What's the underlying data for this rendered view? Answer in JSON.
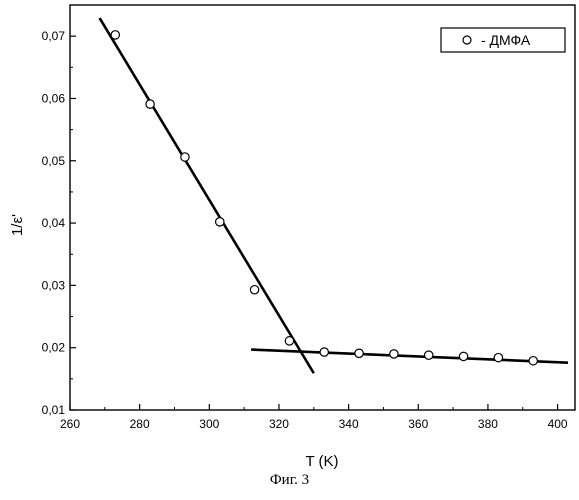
{
  "chart_data": {
    "type": "scatter",
    "xlabel": "T (K)",
    "ylabel": "1/ε'",
    "xlim": [
      260,
      405
    ],
    "ylim": [
      0.01,
      0.075
    ],
    "x_ticks": [
      260,
      280,
      300,
      320,
      340,
      360,
      380,
      400
    ],
    "x_tick_labels": [
      "260",
      "280",
      "300",
      "320",
      "340",
      "360",
      "380",
      "400"
    ],
    "y_ticks": [
      0.01,
      0.02,
      0.03,
      0.04,
      0.05,
      0.06,
      0.07
    ],
    "y_tick_labels": [
      "0,01",
      "0,02",
      "0,03",
      "0,04",
      "0,05",
      "0,06",
      "0,07"
    ],
    "grid": false,
    "legend_position": "top-right",
    "series": [
      {
        "name": "- ДМФА",
        "marker": "open-circle",
        "x": [
          273,
          283,
          293,
          303,
          313,
          323,
          333,
          343,
          353,
          363,
          373,
          383,
          393
        ],
        "y": [
          0.0702,
          0.0591,
          0.0506,
          0.0402,
          0.0293,
          0.0211,
          0.0193,
          0.0191,
          0.019,
          0.0188,
          0.0186,
          0.0184,
          0.0179
        ]
      }
    ],
    "fit_lines": [
      {
        "x": [
          268.5,
          330
        ],
        "y": [
          0.0729,
          0.0159
        ]
      },
      {
        "x": [
          312,
          403
        ],
        "y": [
          0.0197,
          0.0176
        ]
      }
    ]
  },
  "caption": "Фиг. 3"
}
